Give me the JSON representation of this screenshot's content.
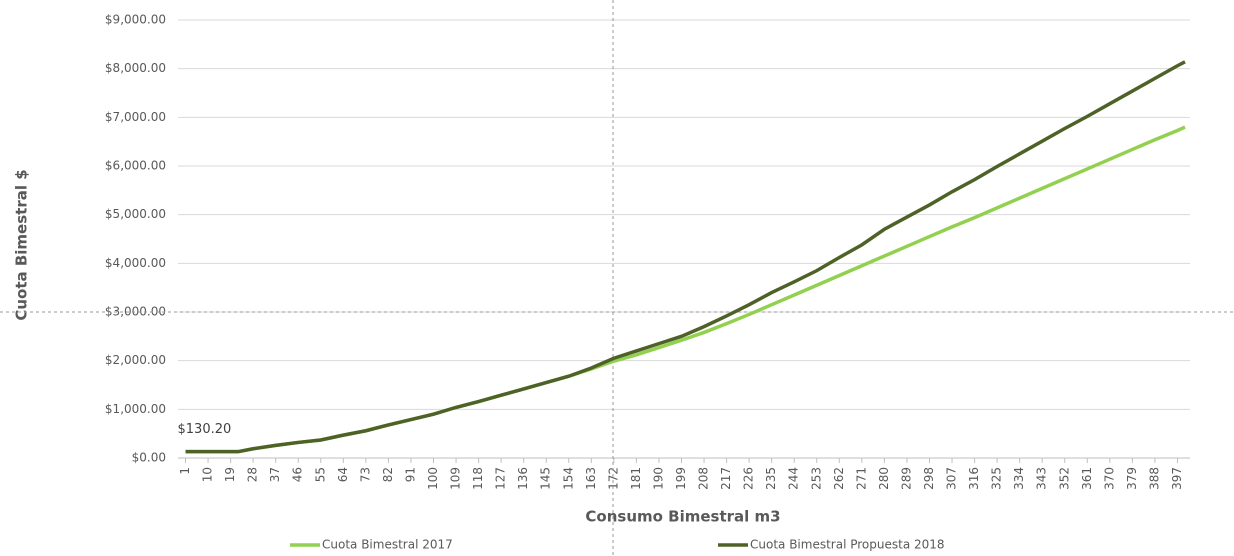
{
  "chart_data": {
    "type": "line",
    "y_label": "Cuota Bimestral $",
    "x_label": "Consumo Bimestral m3",
    "x": [
      1,
      10,
      19,
      22,
      28,
      37,
      46,
      55,
      64,
      73,
      82,
      91,
      100,
      109,
      118,
      127,
      136,
      145,
      154,
      163,
      172,
      181,
      190,
      199,
      208,
      217,
      226,
      235,
      244,
      253,
      262,
      271,
      280,
      289,
      298,
      307,
      316,
      325,
      334,
      343,
      352,
      361,
      370,
      379,
      388,
      397,
      400
    ],
    "series": [
      {
        "name": "Cuota Bimestral 2017",
        "color": "#92d050",
        "values": [
          130.2,
          130.2,
          130.2,
          130.2,
          190,
          260,
          320,
          370,
          470,
          560,
          680,
          790,
          900,
          1040,
          1160,
          1290,
          1420,
          1550,
          1680,
          1830,
          1990,
          2120,
          2270,
          2420,
          2580,
          2760,
          2950,
          3150,
          3350,
          3550,
          3750,
          3950,
          4150,
          4350,
          4550,
          4750,
          4940,
          5140,
          5340,
          5540,
          5740,
          5940,
          6140,
          6340,
          6540,
          6730,
          6800
        ]
      },
      {
        "name": "Cuota Bimestral Propuesta 2018",
        "color": "#4e6228",
        "values": [
          130.2,
          130.2,
          130.2,
          130.2,
          190,
          260,
          320,
          370,
          470,
          560,
          680,
          790,
          900,
          1040,
          1160,
          1290,
          1420,
          1550,
          1680,
          1850,
          2050,
          2200,
          2350,
          2500,
          2700,
          2920,
          3150,
          3400,
          3620,
          3850,
          4120,
          4380,
          4700,
          4950,
          5200,
          5470,
          5720,
          5990,
          6250,
          6510,
          6770,
          7020,
          7280,
          7540,
          7800,
          8060,
          8140
        ]
      }
    ],
    "annotations": [
      {
        "text": "$130.20",
        "x": 1,
        "y": 130.2
      }
    ],
    "xlim": [
      -2,
      402
    ],
    "xticks": [
      1,
      10,
      19,
      28,
      37,
      46,
      55,
      64,
      73,
      82,
      91,
      100,
      109,
      118,
      127,
      136,
      145,
      154,
      163,
      172,
      181,
      190,
      199,
      208,
      217,
      226,
      235,
      244,
      253,
      262,
      271,
      280,
      289,
      298,
      307,
      316,
      325,
      334,
      343,
      352,
      361,
      370,
      379,
      388,
      397
    ],
    "ylim": [
      0,
      9000
    ],
    "yticks": [
      {
        "value": 0,
        "label": "$0.00"
      },
      {
        "value": 1000,
        "label": "$1,000.00"
      },
      {
        "value": 2000,
        "label": "$2,000.00"
      },
      {
        "value": 3000,
        "label": "$3,000.00"
      },
      {
        "value": 4000,
        "label": "$4,000.00"
      },
      {
        "value": 5000,
        "label": "$5,000.00"
      },
      {
        "value": 6000,
        "label": "$6,000.00"
      },
      {
        "value": 7000,
        "label": "$7,000.00"
      },
      {
        "value": 8000,
        "label": "$8,000.00"
      },
      {
        "value": 9000,
        "label": "$9,000.00"
      }
    ],
    "grid": true,
    "legend": "bottom"
  }
}
